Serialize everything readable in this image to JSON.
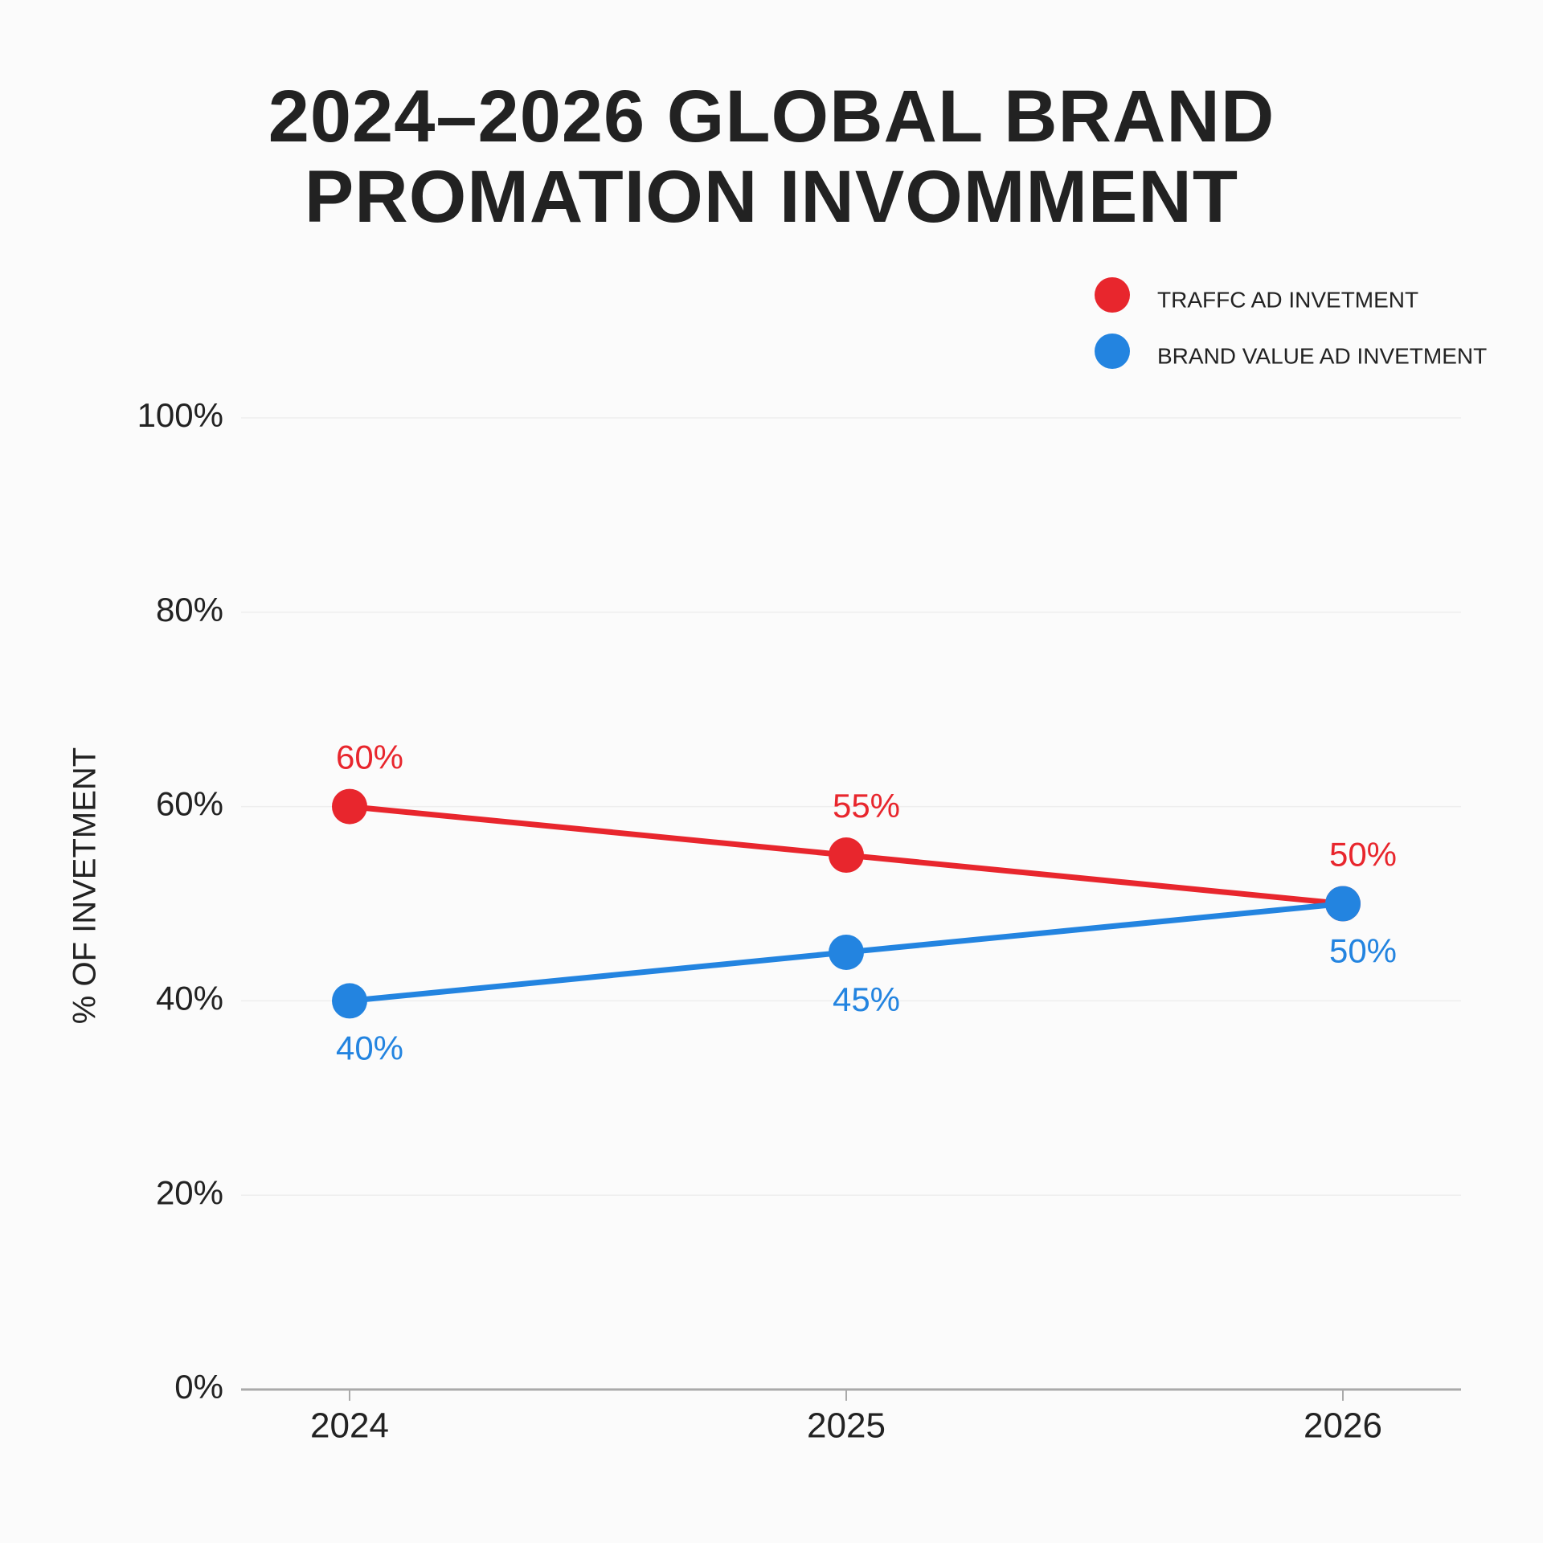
{
  "chart_data": {
    "type": "line",
    "title": "2024–2026 GLOBAL BRAND PROMATION INVOMMENT",
    "y_label": "% OF INVETMENT",
    "categories": [
      "2024",
      "2025",
      "2026"
    ],
    "series": [
      {
        "name": "TRAFFC AD INVETMENT",
        "color": "#e8262d",
        "values": [
          60,
          55,
          50
        ],
        "value_labels": [
          "60%",
          "55%",
          "50%"
        ]
      },
      {
        "name": "BRAND VALUE AD INVETMENT",
        "color": "#2384e0",
        "values": [
          40,
          45,
          50
        ],
        "value_labels": [
          "40%",
          "45%",
          "50%"
        ]
      }
    ],
    "ylim": [
      0,
      100
    ],
    "yticks": [
      {
        "value": 0,
        "label": "0%"
      },
      {
        "value": 20,
        "label": "20%"
      },
      {
        "value": 40,
        "label": "40%"
      },
      {
        "value": 60,
        "label": "60%"
      },
      {
        "value": 80,
        "label": "80%"
      },
      {
        "value": 100,
        "label": "100%"
      }
    ],
    "grid": true,
    "legend": "top-right"
  }
}
